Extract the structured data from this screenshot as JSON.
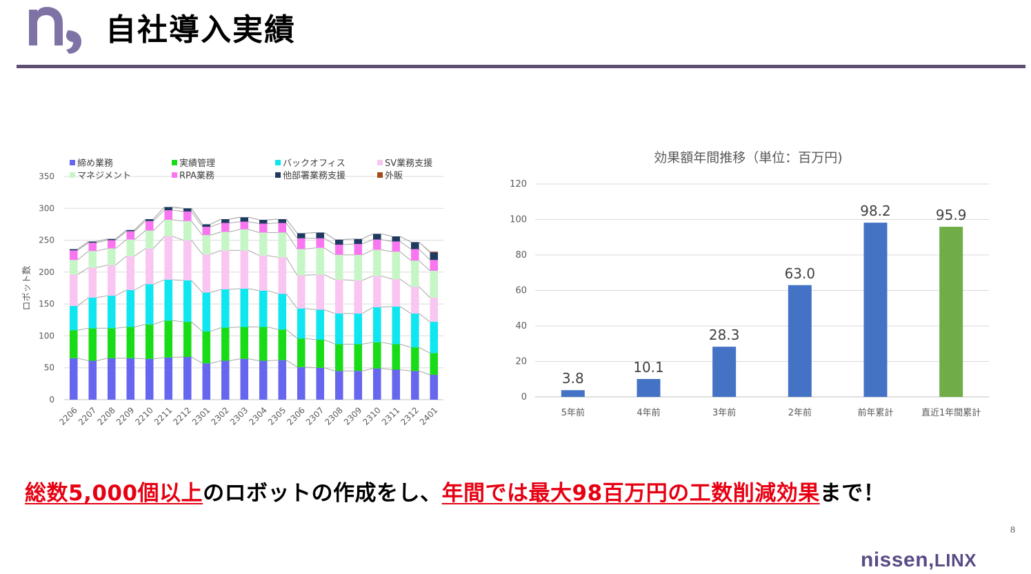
{
  "header": {
    "title": "自社導入実績",
    "logo_icon": "nissen-n-logo-icon",
    "rule_color": "#5e4e72"
  },
  "chart_data": [
    {
      "type": "bar",
      "stacked": true,
      "title": "",
      "ylabel": "ロボット数",
      "xlabel": "",
      "ylim": [
        0,
        350
      ],
      "yticks": [
        0,
        50,
        100,
        150,
        200,
        250,
        300,
        350
      ],
      "grid": true,
      "legend_position": "top",
      "categories": [
        "2206",
        "2207",
        "2208",
        "2209",
        "2210",
        "2211",
        "2212",
        "2301",
        "2302",
        "2303",
        "2304",
        "2305",
        "2306",
        "2307",
        "2308",
        "2309",
        "2310",
        "2311",
        "2312",
        "2401"
      ],
      "series": [
        {
          "name": "締め業務",
          "color": "#6666ee",
          "values": [
            65,
            61,
            65,
            65,
            64,
            66,
            67,
            57,
            61,
            64,
            61,
            62,
            51,
            50,
            45,
            45,
            49,
            47,
            45,
            39
          ]
        },
        {
          "name": "実績管理",
          "color": "#19dc19",
          "values": [
            44,
            51,
            47,
            49,
            54,
            58,
            55,
            50,
            52,
            50,
            53,
            48,
            45,
            44,
            42,
            42,
            41,
            40,
            37,
            34
          ]
        },
        {
          "name": "バックオフィス",
          "color": "#0fe6f0",
          "values": [
            38,
            48,
            51,
            58,
            63,
            64,
            65,
            61,
            60,
            60,
            57,
            56,
            47,
            47,
            48,
            48,
            55,
            59,
            53,
            49
          ]
        },
        {
          "name": "SV業務支援",
          "color": "#f8c6f0",
          "values": [
            49,
            47,
            48,
            53,
            56,
            68,
            63,
            60,
            61,
            60,
            55,
            57,
            52,
            55,
            53,
            52,
            49,
            43,
            42,
            38
          ]
        },
        {
          "name": "マネジメント",
          "color": "#c6f6c6",
          "values": [
            23,
            26,
            26,
            26,
            28,
            26,
            30,
            30,
            29,
            33,
            36,
            39,
            41,
            42,
            39,
            40,
            41,
            43,
            41,
            42
          ]
        },
        {
          "name": "RPA業務",
          "color": "#f976f1",
          "values": [
            15,
            13,
            13,
            13,
            15,
            15,
            15,
            13,
            14,
            12,
            14,
            15,
            17,
            15,
            16,
            17,
            16,
            16,
            18,
            17
          ]
        },
        {
          "name": "他部署業務支援",
          "color": "#1f3a5f",
          "values": [
            2,
            2,
            2,
            2,
            3,
            5,
            5,
            4,
            6,
            7,
            6,
            6,
            8,
            9,
            8,
            8,
            9,
            8,
            11,
            12
          ]
        },
        {
          "name": "外販",
          "color": "#a24a1a",
          "values": [
            0,
            0,
            0,
            0,
            0,
            0,
            0,
            0,
            0,
            0,
            0,
            0,
            0,
            0,
            0,
            0,
            0,
            0,
            0,
            1
          ]
        }
      ]
    },
    {
      "type": "bar",
      "title": "効果額年間推移（単位：百万円)",
      "xlabel": "",
      "ylabel": "",
      "ylim": [
        0,
        120
      ],
      "yticks": [
        0,
        20,
        40,
        60,
        80,
        100,
        120
      ],
      "grid": true,
      "categories": [
        "5年前",
        "4年前",
        "3年前",
        "2年前",
        "前年累計",
        "直近1年間累計"
      ],
      "values": [
        3.8,
        10.1,
        28.3,
        63.0,
        98.2,
        95.9
      ],
      "data_labels": [
        "3.8",
        "10.1",
        "28.3",
        "63.0",
        "98.2",
        "95.9"
      ],
      "colors": [
        "#4472c4",
        "#4472c4",
        "#4472c4",
        "#4472c4",
        "#4472c4",
        "#70ad47"
      ]
    }
  ],
  "tagline": {
    "part1": "総数5,000個以上",
    "part2": "のロボットの作成をし、",
    "part3": "年間では最大98百万円の工数削減効果",
    "part4": "まで！"
  },
  "footer": {
    "page_number": "8",
    "brand_main": "nissen",
    "brand_suffix": "LINX",
    "brand_color": "#5a4a86"
  }
}
